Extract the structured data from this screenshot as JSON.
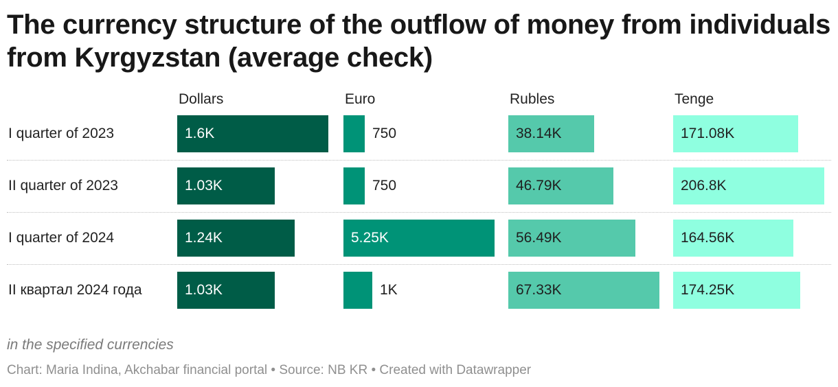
{
  "title": "The currency structure of the outflow of money from individuals from Kyrgyzstan (average check)",
  "note": "in the specified currencies",
  "source": "Chart: Maria Indina, Akchabar financial portal • Source: NB KR • Created with Datawrapper",
  "chart_data": {
    "type": "bar",
    "title": "The currency structure of the outflow of money from individuals from Kyrgyzstan (average check)",
    "categories": [
      "I quarter of 2023",
      "II quarter of 2023",
      "I quarter of 2024",
      "II квартал 2024 года"
    ],
    "series": [
      {
        "name": "Dollars",
        "color": "#005c47",
        "label_color": "#ffffff",
        "values": [
          1600,
          1030,
          1240,
          1030
        ],
        "labels": [
          "1.6K",
          "1.03K",
          "1.24K",
          "1.03K"
        ]
      },
      {
        "name": "Euro",
        "color": "#009377",
        "label_color": "#ffffff",
        "values": [
          750,
          750,
          5250,
          1000
        ],
        "labels": [
          "750",
          "750",
          "5.25K",
          "1K"
        ]
      },
      {
        "name": "Rubles",
        "color": "#55c9ab",
        "label_color": "#1f1f1f",
        "values": [
          38140,
          46790,
          56490,
          67330
        ],
        "labels": [
          "38.14K",
          "46.79K",
          "56.49K",
          "67.33K"
        ]
      },
      {
        "name": "Tenge",
        "color": "#8fffe0",
        "label_color": "#1f1f1f",
        "values": [
          171080,
          206800,
          164560,
          174250
        ],
        "labels": [
          "171.08K",
          "206.8K",
          "164.56K",
          "174.25K"
        ]
      }
    ],
    "xlim_per_series": [
      [
        0,
        1600
      ],
      [
        0,
        5250
      ],
      [
        0,
        67330
      ],
      [
        0,
        206800
      ]
    ],
    "grid": false,
    "legend": "none"
  }
}
